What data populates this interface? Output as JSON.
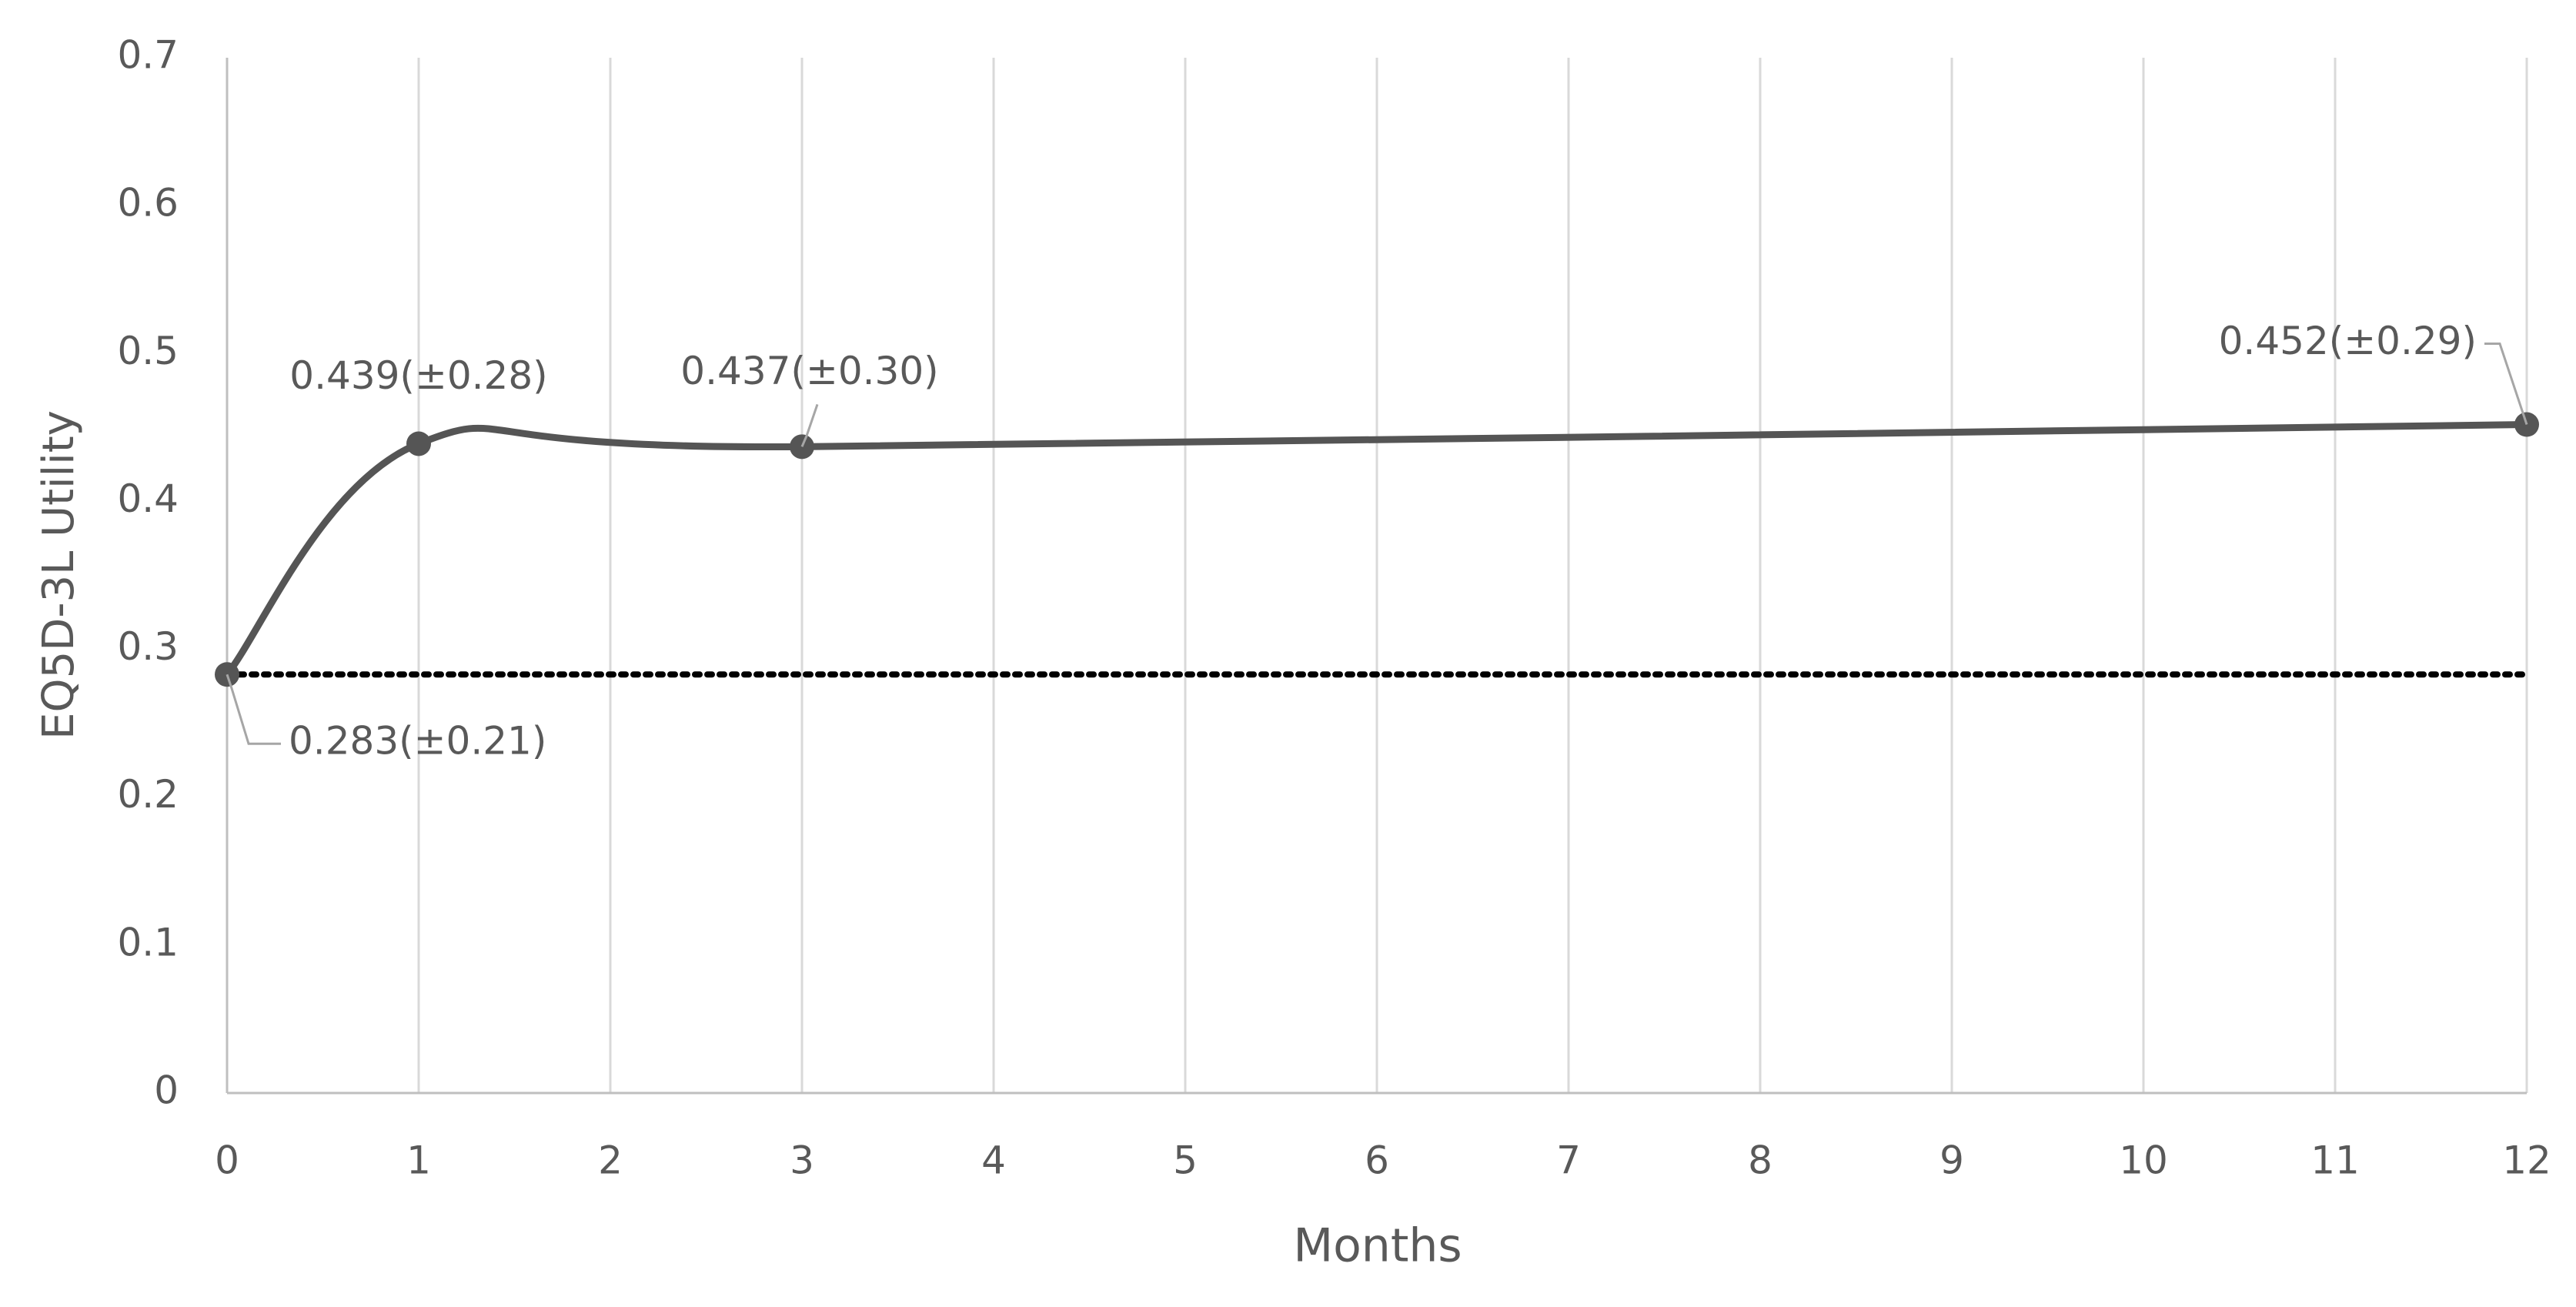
{
  "chart_data": {
    "type": "line",
    "x": [
      0,
      1,
      3,
      12
    ],
    "series": [
      {
        "name": "EQ5D-3L Utility",
        "color": "#555555",
        "values": [
          0.283,
          0.439,
          0.437,
          0.452
        ],
        "value_labels": [
          "0.283(±0.21)",
          "0.439(±0.28)",
          "0.437(±0.30)",
          "0.452(±0.29)"
        ]
      }
    ],
    "reference_line": {
      "value": 0.283,
      "style": "dotted",
      "color": "#000000"
    },
    "xlabel": "Months",
    "ylabel": "EQ5D-3L Utility",
    "xlim": [
      0,
      12
    ],
    "xticks": [
      0,
      1,
      2,
      3,
      4,
      5,
      6,
      7,
      8,
      9,
      10,
      11,
      12
    ],
    "ylim": [
      0,
      0.7
    ],
    "yticks": [
      0,
      0.1,
      0.2,
      0.3,
      0.4,
      0.5,
      0.6,
      0.7
    ],
    "grid": "x",
    "smooth": true
  }
}
